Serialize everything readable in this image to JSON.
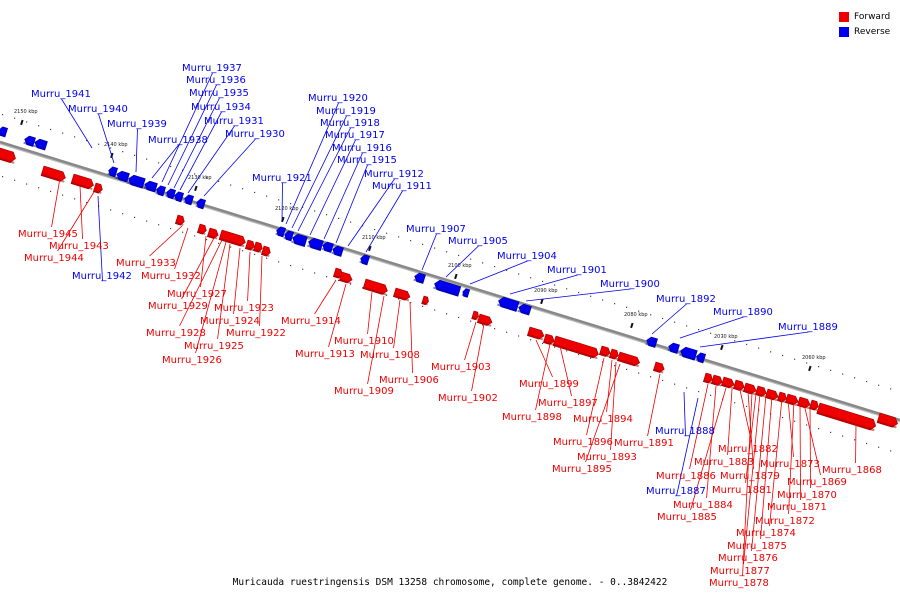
{
  "caption": "Muricauda ruestringensis DSM 13258 chromosome, complete genome. - 0..3842422",
  "legend": [
    {
      "label": "Forward",
      "color": "#ee0000"
    },
    {
      "label": "Reverse",
      "color": "#0000ee"
    }
  ],
  "colors": {
    "forward": "#ee0000",
    "reverse": "#0000ee",
    "axis": "#888888"
  },
  "scale_labels": [
    "2150 kbp",
    "2140 kbp",
    "2130 kbp",
    "2120 kbp",
    "2110 kbp",
    "2100 kbp",
    "2090 kbp",
    "2080 kbp",
    "2070 kbp",
    "2060 kbp"
  ],
  "forward_genes": [
    "Murru_1945",
    "Murru_1943",
    "Murru_1944",
    "Murru_1933",
    "Murru_1932",
    "Murru_1927",
    "Murru_1929",
    "Murru_1928",
    "Murru_1924",
    "Murru_1923",
    "Murru_1925",
    "Murru_1922",
    "Murru_1926",
    "Murru_1914",
    "Murru_1910",
    "Murru_1913",
    "Murru_1908",
    "Murru_1909",
    "Murru_1906",
    "Murru_1903",
    "Murru_1902",
    "Murru_1899",
    "Murru_1897",
    "Murru_1898",
    "Murru_1894",
    "Murru_1896",
    "Murru_1891",
    "Murru_1893",
    "Murru_1895",
    "Murru_1886",
    "Murru_1884",
    "Murru_1885",
    "Murru_1882",
    "Murru_1883",
    "Murru_1879",
    "Murru_1881",
    "Murru_1873",
    "Murru_1869",
    "Murru_1870",
    "Murru_1871",
    "Murru_1872",
    "Murru_1874",
    "Murru_1875",
    "Murru_1876",
    "Murru_1877",
    "Murru_1878",
    "Murru_1868"
  ],
  "reverse_genes": [
    "Murru_1941",
    "Murru_1940",
    "Murru_1939",
    "Murru_1937",
    "Murru_1936",
    "Murru_1935",
    "Murru_1934",
    "Murru_1931",
    "Murru_1938",
    "Murru_1930",
    "Murru_1942",
    "Murru_1920",
    "Murru_1919",
    "Murru_1918",
    "Murru_1917",
    "Murru_1916",
    "Murru_1915",
    "Murru_1912",
    "Murru_1911",
    "Murru_1921",
    "Murru_1907",
    "Murru_1905",
    "Murru_1904",
    "Murru_1901",
    "Murru_1900",
    "Murru_1892",
    "Murru_1890",
    "Murru_1889",
    "Murru_1888",
    "Murru_1887"
  ]
}
